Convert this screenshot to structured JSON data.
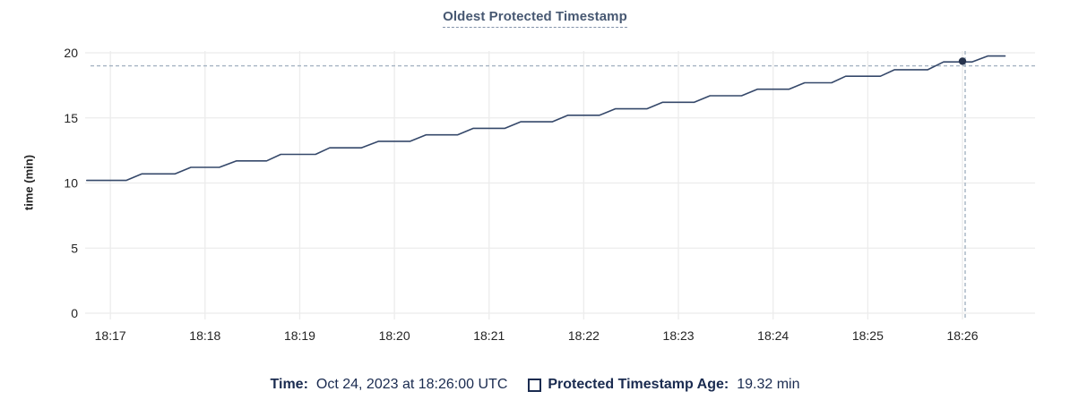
{
  "page": {
    "background": "#ffffff"
  },
  "footer": {
    "time_label": "Time:",
    "time_value": "Oct 24, 2023 at 18:26:00 UTC",
    "series_label": "Protected Timestamp Age:",
    "series_value": "19.32 min",
    "checkbox_checked": false
  },
  "chart_data": {
    "type": "line",
    "title": "Oldest Protected Timestamp",
    "xlabel": "",
    "ylabel": "time (min)",
    "x_ticks": [
      "18:17",
      "18:18",
      "18:19",
      "18:20",
      "18:21",
      "18:22",
      "18:23",
      "18:24",
      "18:25",
      "18:26"
    ],
    "y_ticks": [
      0,
      5,
      10,
      15,
      20
    ],
    "ylim": [
      0,
      20
    ],
    "x_domain": [
      "18:16:44",
      "18:26:46"
    ],
    "grid": true,
    "legend_position": "bottom",
    "colors": {
      "line": "#35486a",
      "dot": "#26334d",
      "crosshair": "#a4b3c2",
      "grid": "#ececec",
      "title": "#475872",
      "axis_text": "#242424",
      "footer_text": "#1a2b50"
    },
    "series": [
      {
        "name": "Protected Timestamp Age",
        "unit": "min",
        "points": [
          [
            "18:16:45",
            10.2
          ],
          [
            "18:17:10",
            10.2
          ],
          [
            "18:17:20",
            10.7
          ],
          [
            "18:17:41",
            10.7
          ],
          [
            "18:17:51",
            11.2
          ],
          [
            "18:18:09",
            11.2
          ],
          [
            "18:18:20",
            11.7
          ],
          [
            "18:18:39",
            11.7
          ],
          [
            "18:18:48",
            12.2
          ],
          [
            "18:19:10",
            12.2
          ],
          [
            "18:19:19",
            12.7
          ],
          [
            "18:19:39",
            12.7
          ],
          [
            "18:19:50",
            13.2
          ],
          [
            "18:20:10",
            13.2
          ],
          [
            "18:20:20",
            13.7
          ],
          [
            "18:20:40",
            13.7
          ],
          [
            "18:20:50",
            14.2
          ],
          [
            "18:21:10",
            14.2
          ],
          [
            "18:21:20",
            14.7
          ],
          [
            "18:21:40",
            14.7
          ],
          [
            "18:21:50",
            15.2
          ],
          [
            "18:22:10",
            15.2
          ],
          [
            "18:22:20",
            15.7
          ],
          [
            "18:22:40",
            15.7
          ],
          [
            "18:22:50",
            16.2
          ],
          [
            "18:23:10",
            16.2
          ],
          [
            "18:23:20",
            16.7
          ],
          [
            "18:23:40",
            16.7
          ],
          [
            "18:23:50",
            17.2
          ],
          [
            "18:24:10",
            17.2
          ],
          [
            "18:24:20",
            17.7
          ],
          [
            "18:24:37",
            17.7
          ],
          [
            "18:24:46",
            18.2
          ],
          [
            "18:25:08",
            18.2
          ],
          [
            "18:25:17",
            18.7
          ],
          [
            "18:25:38",
            18.7
          ],
          [
            "18:25:48",
            19.3
          ],
          [
            "18:26:06",
            19.3
          ],
          [
            "18:26:16",
            19.75
          ],
          [
            "18:26:27",
            19.75
          ]
        ]
      }
    ],
    "crosshair": {
      "vline_time": "18:26:00",
      "hline_value": 19.0,
      "point": {
        "time": "18:26:00",
        "value": 19.35
      }
    }
  }
}
